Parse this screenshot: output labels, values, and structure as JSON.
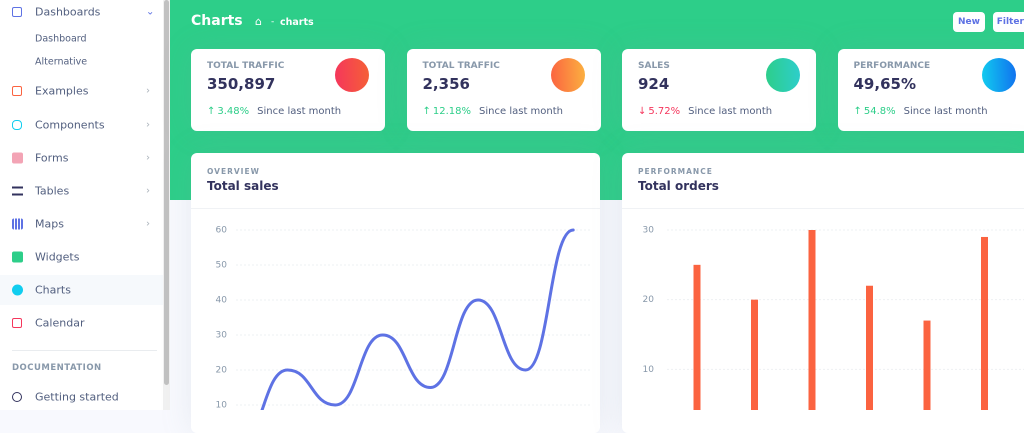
{
  "sidebar": {
    "items": [
      {
        "label": "Dashboards"
      },
      {
        "label": "Dashboard"
      },
      {
        "label": "Alternative"
      },
      {
        "label": "Examples"
      },
      {
        "label": "Components"
      },
      {
        "label": "Forms"
      },
      {
        "label": "Tables"
      },
      {
        "label": "Maps"
      },
      {
        "label": "Widgets"
      },
      {
        "label": "Charts"
      },
      {
        "label": "Calendar"
      }
    ],
    "section": "DOCUMENTATION",
    "doc_items": [
      {
        "label": "Getting started"
      }
    ]
  },
  "header": {
    "title": "Charts",
    "breadcrumb": "charts",
    "buttons": [
      "New",
      "Filters"
    ]
  },
  "stats": [
    {
      "title": "TOTAL TRAFFIC",
      "value": "350,897",
      "change": "3.48%",
      "direction": "up",
      "note": "Since last month"
    },
    {
      "title": "TOTAL TRAFFIC",
      "value": "2,356",
      "change": "12.18%",
      "direction": "up",
      "note": "Since last month"
    },
    {
      "title": "SALES",
      "value": "924",
      "change": "5.72%",
      "direction": "down",
      "note": "Since last month"
    },
    {
      "title": "PERFORMANCE",
      "value": "49,65%",
      "change": "54.8%",
      "direction": "up",
      "note": "Since last month"
    }
  ],
  "charts": [
    {
      "overline": "OVERVIEW",
      "title": "Total sales",
      "type": "line",
      "color": "#5e72e4",
      "values": [
        0,
        20,
        10,
        30,
        15,
        40,
        20,
        60
      ],
      "ylim": [
        0,
        60
      ],
      "yticks": [
        10,
        20,
        30,
        40,
        50,
        60
      ]
    },
    {
      "overline": "PERFORMANCE",
      "title": "Total orders",
      "type": "bar",
      "color": "#fb6340",
      "values": [
        25,
        20,
        30,
        22,
        17,
        29
      ],
      "ylim": [
        0,
        30
      ],
      "yticks": [
        10,
        20,
        30
      ]
    }
  ]
}
